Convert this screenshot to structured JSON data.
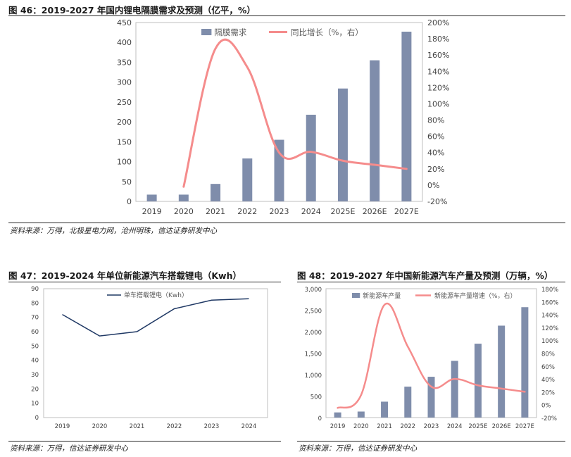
{
  "figures": [
    {
      "title": "图 46：2019-2027 年国内锂电隔膜需求及预测（亿平，%）",
      "source": "资料来源：万得，北极星电力网，沧州明珠，信达证券研发中心"
    },
    {
      "title": "图 47：2019-2024 年单位新能源汽车搭载锂电（Kwh）",
      "source": "资料来源：万得，信达证券研发中心"
    },
    {
      "title": "图 48：2019-2027 年中国新能源汽车产量及预测（万辆，%）",
      "source": "资料来源：万得，信达证券研发中心"
    }
  ],
  "colors": {
    "bar": "#7F8DAB",
    "growth_line": "#F58C8C",
    "single_line": "#1F3864"
  },
  "chart_data": [
    {
      "type": "bar+line",
      "categories": [
        "2019",
        "2020",
        "2021",
        "2022",
        "2023",
        "2024",
        "2025E",
        "2026E",
        "2027E"
      ],
      "series": [
        {
          "name": "隔膜需求",
          "type": "bar",
          "axis": "left",
          "values": [
            17,
            17,
            44,
            108,
            155,
            218,
            284,
            355,
            427
          ]
        },
        {
          "name": "同比增长（%，右）",
          "type": "line",
          "axis": "right",
          "values": [
            null,
            -2,
            168,
            145,
            40,
            41,
            30,
            25,
            20
          ]
        }
      ],
      "ylim": [
        0,
        450
      ],
      "yticks": [
        "0",
        "50",
        "100",
        "150",
        "200",
        "250",
        "300",
        "350",
        "400",
        "450"
      ],
      "y2lim": [
        -20,
        200
      ],
      "y2ticks": [
        "-20%",
        "0%",
        "20%",
        "40%",
        "60%",
        "80%",
        "100%",
        "120%",
        "140%",
        "160%",
        "180%",
        "200%"
      ],
      "legend": "top"
    },
    {
      "type": "line",
      "categories": [
        "2019",
        "2020",
        "2021",
        "2022",
        "2023",
        "2024"
      ],
      "series": [
        {
          "name": "单车搭载锂电（Kwh）",
          "values": [
            72,
            57,
            60,
            76,
            82,
            83
          ]
        }
      ],
      "ylim": [
        0,
        90
      ],
      "yticks": [
        "0",
        "10",
        "20",
        "30",
        "40",
        "50",
        "60",
        "70",
        "80",
        "90"
      ],
      "legend": "top-left"
    },
    {
      "type": "bar+line",
      "categories": [
        "2019",
        "2020",
        "2021",
        "2022",
        "2023",
        "2024",
        "2025E",
        "2026E",
        "2027E"
      ],
      "series": [
        {
          "name": "新能源车产量",
          "type": "bar",
          "axis": "left",
          "values": [
            120,
            140,
            370,
            720,
            950,
            1320,
            1720,
            2140,
            2570
          ]
        },
        {
          "name": "新能源车产量增速（%，右）",
          "type": "line",
          "axis": "right",
          "values": [
            -5,
            15,
            155,
            90,
            28,
            40,
            30,
            25,
            20
          ]
        }
      ],
      "ylim": [
        0,
        3000
      ],
      "yticks": [
        "0",
        "500",
        "1,000",
        "1,500",
        "2,000",
        "2,500",
        "3,000"
      ],
      "y2lim": [
        -20,
        180
      ],
      "y2ticks": [
        "-20%",
        "0%",
        "20%",
        "40%",
        "60%",
        "80%",
        "100%",
        "120%",
        "140%",
        "160%",
        "180%"
      ],
      "legend": "top"
    }
  ]
}
